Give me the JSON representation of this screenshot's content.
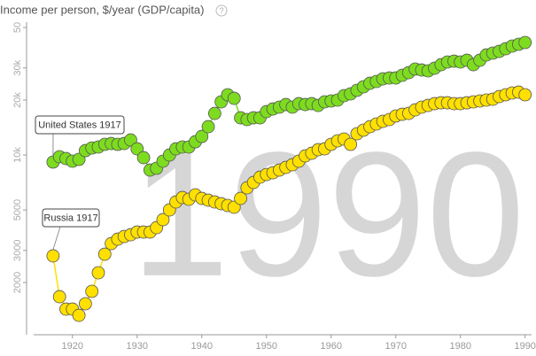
{
  "chart_data": {
    "type": "scatter",
    "title": "Income per person, $/year (GDP/capita)",
    "help_icon": "?",
    "year_watermark": "1990",
    "log_y": true,
    "xlim": [
      1914,
      1991
    ],
    "xticks": [
      1920,
      1930,
      1940,
      1950,
      1960,
      1970,
      1980,
      1990
    ],
    "ylim": [
      1070,
      53500
    ],
    "yticks": [
      2000,
      3000,
      5000,
      {
        "value": 10000,
        "label": "10k"
      },
      {
        "value": 20000,
        "label": "20k"
      },
      {
        "value": 30000,
        "label": "30k"
      },
      {
        "value": 50000,
        "label": "50"
      }
    ],
    "x": [
      1917,
      1918,
      1919,
      1920,
      1921,
      1922,
      1923,
      1924,
      1925,
      1926,
      1927,
      1928,
      1929,
      1930,
      1931,
      1932,
      1933,
      1934,
      1935,
      1936,
      1937,
      1938,
      1939,
      1940,
      1941,
      1942,
      1943,
      1944,
      1945,
      1946,
      1947,
      1948,
      1949,
      1950,
      1951,
      1952,
      1953,
      1954,
      1955,
      1956,
      1957,
      1958,
      1959,
      1960,
      1961,
      1962,
      1963,
      1964,
      1965,
      1966,
      1967,
      1968,
      1969,
      1970,
      1971,
      1972,
      1973,
      1974,
      1975,
      1976,
      1977,
      1978,
      1979,
      1980,
      1981,
      1982,
      1983,
      1984,
      1985,
      1986,
      1987,
      1988,
      1989,
      1990
    ],
    "series": [
      {
        "name": "United States",
        "color": "#7ddc1f",
        "annotation": "United States 1917",
        "values": [
          9150,
          9780,
          9560,
          9250,
          9460,
          10570,
          10930,
          11060,
          11440,
          11560,
          11440,
          11560,
          12090,
          10810,
          9670,
          8270,
          8460,
          9250,
          10000,
          10810,
          11060,
          11060,
          11820,
          12640,
          14300,
          16910,
          19560,
          21390,
          20450,
          15990,
          15640,
          15990,
          15990,
          17290,
          17880,
          18290,
          18910,
          18290,
          19120,
          18910,
          19120,
          18700,
          19560,
          19780,
          20000,
          21150,
          21630,
          22620,
          23650,
          24730,
          25290,
          26150,
          26440,
          26440,
          27350,
          28280,
          29580,
          29240,
          28920,
          29900,
          31270,
          32340,
          32700,
          32340,
          33070,
          31270,
          33070,
          35360,
          36170,
          36980,
          38240,
          39550,
          40450,
          41370
        ]
      },
      {
        "name": "Russia",
        "color": "#ffe000",
        "annotation": "Russia 1917",
        "values": [
          2800,
          1672,
          1430,
          1430,
          1322,
          1530,
          1789,
          2262,
          2860,
          3270,
          3458,
          3575,
          3656,
          3782,
          3782,
          3782,
          3999,
          4421,
          5000,
          5530,
          5848,
          5720,
          6048,
          5782,
          5655,
          5530,
          5408,
          5289,
          5172,
          5782,
          6612,
          7071,
          7561,
          7819,
          7996,
          8270,
          8551,
          8843,
          9249,
          9888,
          10226,
          10694,
          10810,
          11440,
          11960,
          12230,
          11440,
          13080,
          13680,
          14300,
          14790,
          15290,
          15640,
          16360,
          16720,
          16910,
          17680,
          18290,
          18700,
          19120,
          19330,
          19330,
          19120,
          19120,
          19330,
          19560,
          19780,
          20000,
          20220,
          20910,
          21390,
          21870,
          22110,
          21390
        ]
      }
    ]
  }
}
